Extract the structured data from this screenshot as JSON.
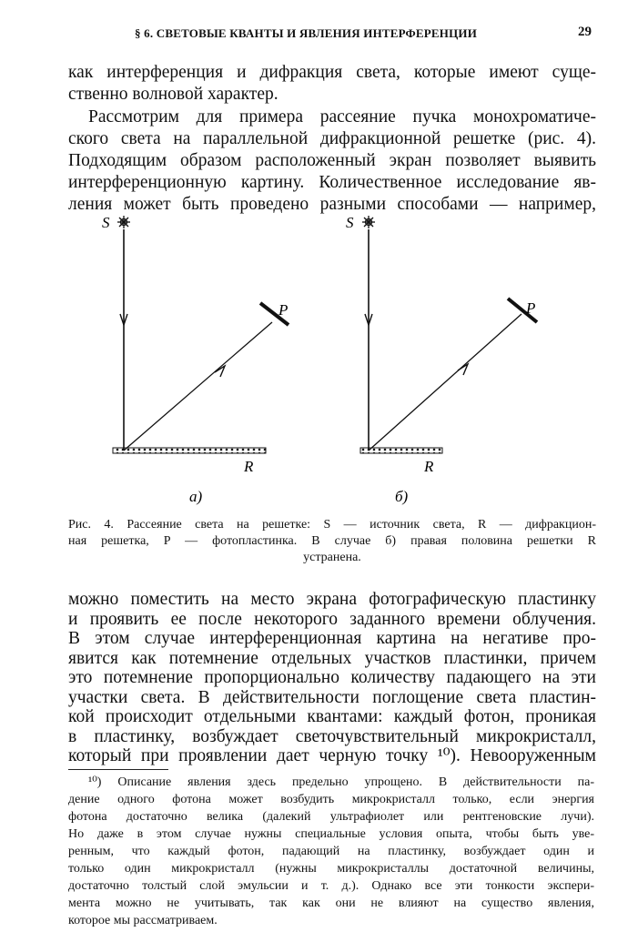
{
  "header": {
    "running_title": "§ 6. СВЕТОВЫЕ КВАНТЫ И ЯВЛЕНИЯ ИНТЕРФЕРЕНЦИИ",
    "page_number": "29"
  },
  "intro": {
    "lines": [
      "как интерференция и дифракция света, которые имеют суще-",
      "ственно волновой характер."
    ]
  },
  "para1": {
    "lines": [
      "Рассмотрим для примера рассеяние пучка монохроматиче-",
      "ского света на параллельной дифракционной решетке (рис. 4).",
      "Подходящим образом расположенный экран позволяет выявить",
      "интерференционную картину. Количественное исследование яв-",
      "ления может быть проведено разными способами — например,"
    ]
  },
  "figure": {
    "panels": [
      {
        "source_label": "S",
        "plate_label": "P",
        "grating_label": "R",
        "panel_label": "а)"
      },
      {
        "source_label": "S",
        "plate_label": "P",
        "grating_label": "R",
        "panel_label": "б)"
      }
    ],
    "caption_lines": [
      "Рис. 4. Рассеяние света на решетке: S — источник света, R — дифракцион-",
      "ная решетка, P — фотопластинка. В случае б) правая половина решетки R",
      "устранена."
    ]
  },
  "para2": {
    "lines": [
      "можно поместить на место экрана фотографическую пластинку",
      "и проявить ее после некоторого заданного времени облучения.",
      "В этом случае интерференционная картина на негативе про-",
      "явится как потемнение отдельных участков пластинки, причем",
      "это потемнение пропорционально количеству падающего на эти",
      "участки света. В действительности поглощение света пластин-",
      "кой происходит отдельными квантами: каждый фотон, проникая",
      "в пластинку, возбуждает светочувствительный микрокристалл,",
      "который при проявлении дает черную точку ¹⁰). Невооруженным"
    ]
  },
  "footnote": {
    "lines": [
      "¹⁰) Описание явления здесь предельно упрощено. В действительности па-",
      "дение одного фотона может возбудить микрокристалл только, если энергия",
      "фотона достаточно велика (далекий ультрафиолет или рентгеновские лучи).",
      "Но даже в этом случае нужны специальные условия опыта, чтобы быть уве-",
      "ренным, что каждый фотон, падающий на пластинку, возбуждает один и",
      "только один микрокристалл (нужны микрокристаллы достаточной величины,",
      "достаточно толстый слой эмульсии и т. д.). Однако все эти тонкости экспери-",
      "мента можно не учитывать, так как они не влияют на существо явления,",
      "которое мы рассматриваем."
    ]
  }
}
